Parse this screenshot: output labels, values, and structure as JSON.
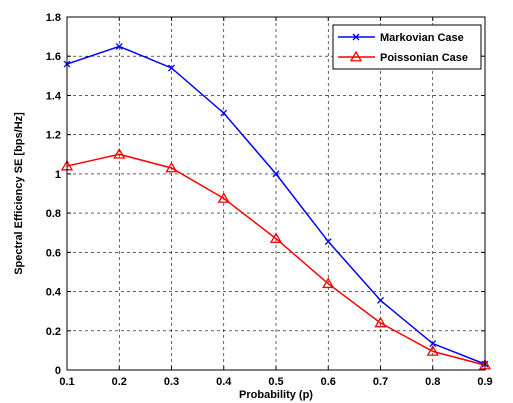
{
  "chart_data": {
    "type": "line",
    "title": "",
    "xlabel": "Probability (p)",
    "ylabel": "Spectral Efficiency SE  [bps/Hz]",
    "xlim": [
      0.1,
      0.9
    ],
    "ylim": [
      0,
      1.8
    ],
    "xticks": [
      0.1,
      0.2,
      0.3,
      0.4,
      0.5,
      0.6,
      0.7,
      0.8,
      0.9
    ],
    "xtick_labels": [
      "0.1",
      "0.2",
      "0.3",
      "0.4",
      "0.5",
      "0.6",
      "0.7",
      "0.8",
      "0.9"
    ],
    "yticks": [
      0,
      0.2,
      0.4,
      0.6,
      0.8,
      1,
      1.2,
      1.4,
      1.6,
      1.8
    ],
    "ytick_labels": [
      "0",
      "0.2",
      "0.4",
      "0.6",
      "0.8",
      "1",
      "1.2",
      "1.4",
      "1.6",
      "1.8"
    ],
    "grid": true,
    "legend_position": "top-right",
    "x": [
      0.1,
      0.2,
      0.3,
      0.4,
      0.5,
      0.6,
      0.7,
      0.8,
      0.9
    ],
    "series": [
      {
        "name": "Markovian Case",
        "color": "#0000ff",
        "marker": "x",
        "values": [
          1.56,
          1.65,
          1.54,
          1.31,
          1.0,
          0.655,
          0.355,
          0.135,
          0.03
        ]
      },
      {
        "name": "Poissonian Case",
        "color": "#ff0000",
        "marker": "triangle",
        "values": [
          1.04,
          1.1,
          1.03,
          0.875,
          0.67,
          0.44,
          0.24,
          0.095,
          0.025
        ]
      }
    ]
  }
}
